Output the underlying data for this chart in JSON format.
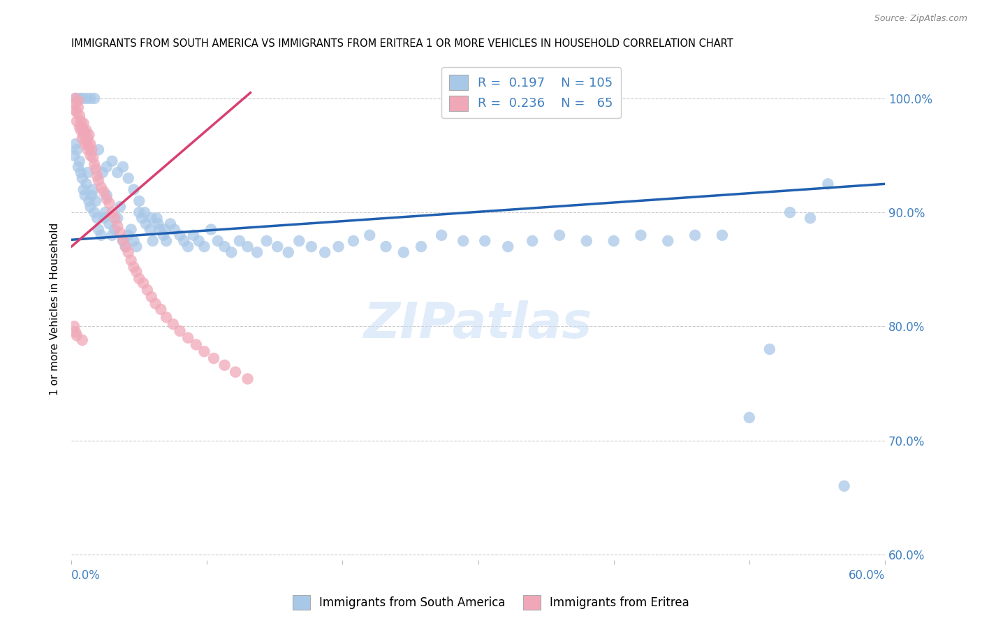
{
  "title": "IMMIGRANTS FROM SOUTH AMERICA VS IMMIGRANTS FROM ERITREA 1 OR MORE VEHICLES IN HOUSEHOLD CORRELATION CHART",
  "source": "Source: ZipAtlas.com",
  "ylabel": "1 or more Vehicles in Household",
  "yticks": [
    "100.0%",
    "90.0%",
    "80.0%",
    "70.0%",
    "60.0%"
  ],
  "ytick_values": [
    1.0,
    0.9,
    0.8,
    0.7,
    0.6
  ],
  "xlim": [
    0.0,
    0.6
  ],
  "ylim": [
    0.595,
    1.035
  ],
  "legend_r_blue": "0.197",
  "legend_n_blue": "105",
  "legend_r_pink": "0.236",
  "legend_n_pink": "65",
  "blue_color": "#a8c8e8",
  "pink_color": "#f0a8b8",
  "line_blue": "#2060b0",
  "line_pink": "#d84070",
  "text_color": "#4080c0",
  "watermark": "ZIPatlas",
  "blue_line_x0": 0.0,
  "blue_line_x1": 0.6,
  "blue_line_y0": 0.876,
  "blue_line_y1": 0.925,
  "pink_line_x0": 0.0,
  "pink_line_x1": 0.132,
  "pink_line_y0": 0.87,
  "pink_line_y1": 1.005,
  "blue_x": [
    0.002,
    0.003,
    0.004,
    0.005,
    0.006,
    0.007,
    0.008,
    0.009,
    0.01,
    0.011,
    0.012,
    0.013,
    0.014,
    0.015,
    0.016,
    0.017,
    0.018,
    0.019,
    0.02,
    0.022,
    0.024,
    0.025,
    0.026,
    0.028,
    0.03,
    0.032,
    0.034,
    0.036,
    0.038,
    0.04,
    0.042,
    0.044,
    0.046,
    0.048,
    0.05,
    0.052,
    0.055,
    0.058,
    0.06,
    0.063,
    0.065,
    0.068,
    0.07,
    0.073,
    0.076,
    0.08,
    0.083,
    0.086,
    0.09,
    0.094,
    0.098,
    0.103,
    0.108,
    0.113,
    0.118,
    0.124,
    0.13,
    0.137,
    0.144,
    0.152,
    0.16,
    0.168,
    0.177,
    0.187,
    0.197,
    0.208,
    0.22,
    0.232,
    0.245,
    0.258,
    0.273,
    0.289,
    0.305,
    0.322,
    0.34,
    0.36,
    0.38,
    0.4,
    0.42,
    0.44,
    0.46,
    0.48,
    0.5,
    0.515,
    0.53,
    0.545,
    0.558,
    0.003,
    0.006,
    0.008,
    0.011,
    0.014,
    0.017,
    0.02,
    0.023,
    0.026,
    0.03,
    0.034,
    0.038,
    0.042,
    0.046,
    0.05,
    0.054,
    0.059,
    0.064,
    0.069,
    0.57
  ],
  "blue_y": [
    0.95,
    0.96,
    0.955,
    0.94,
    0.945,
    0.935,
    0.93,
    0.92,
    0.915,
    0.925,
    0.935,
    0.91,
    0.905,
    0.915,
    0.92,
    0.9,
    0.91,
    0.895,
    0.885,
    0.88,
    0.895,
    0.9,
    0.915,
    0.89,
    0.88,
    0.885,
    0.895,
    0.905,
    0.875,
    0.87,
    0.88,
    0.885,
    0.875,
    0.87,
    0.9,
    0.895,
    0.89,
    0.885,
    0.875,
    0.895,
    0.885,
    0.88,
    0.875,
    0.89,
    0.885,
    0.88,
    0.875,
    0.87,
    0.88,
    0.875,
    0.87,
    0.885,
    0.875,
    0.87,
    0.865,
    0.875,
    0.87,
    0.865,
    0.875,
    0.87,
    0.865,
    0.875,
    0.87,
    0.865,
    0.87,
    0.875,
    0.88,
    0.87,
    0.865,
    0.87,
    0.88,
    0.875,
    0.875,
    0.87,
    0.875,
    0.88,
    0.875,
    0.875,
    0.88,
    0.875,
    0.88,
    0.88,
    0.72,
    0.78,
    0.9,
    0.895,
    0.925,
    1.0,
    1.0,
    1.0,
    1.0,
    1.0,
    1.0,
    0.955,
    0.935,
    0.94,
    0.945,
    0.935,
    0.94,
    0.93,
    0.92,
    0.91,
    0.9,
    0.895,
    0.89,
    0.885,
    0.66
  ],
  "pink_x": [
    0.002,
    0.003,
    0.003,
    0.004,
    0.004,
    0.005,
    0.005,
    0.006,
    0.006,
    0.007,
    0.007,
    0.008,
    0.008,
    0.009,
    0.009,
    0.01,
    0.01,
    0.011,
    0.011,
    0.012,
    0.012,
    0.013,
    0.013,
    0.014,
    0.014,
    0.015,
    0.016,
    0.017,
    0.018,
    0.019,
    0.02,
    0.022,
    0.024,
    0.026,
    0.028,
    0.03,
    0.032,
    0.034,
    0.036,
    0.038,
    0.04,
    0.042,
    0.044,
    0.046,
    0.048,
    0.05,
    0.053,
    0.056,
    0.059,
    0.062,
    0.066,
    0.07,
    0.075,
    0.08,
    0.086,
    0.092,
    0.098,
    0.105,
    0.113,
    0.121,
    0.13,
    0.002,
    0.003,
    0.004,
    0.008
  ],
  "pink_y": [
    0.99,
    0.995,
    1.0,
    0.988,
    0.98,
    0.992,
    0.998,
    0.975,
    0.985,
    0.972,
    0.98,
    0.965,
    0.975,
    0.968,
    0.978,
    0.96,
    0.97,
    0.962,
    0.972,
    0.955,
    0.965,
    0.958,
    0.968,
    0.95,
    0.96,
    0.955,
    0.948,
    0.942,
    0.938,
    0.932,
    0.928,
    0.922,
    0.918,
    0.912,
    0.908,
    0.9,
    0.895,
    0.888,
    0.882,
    0.876,
    0.87,
    0.865,
    0.858,
    0.852,
    0.848,
    0.842,
    0.838,
    0.832,
    0.826,
    0.82,
    0.815,
    0.808,
    0.802,
    0.796,
    0.79,
    0.784,
    0.778,
    0.772,
    0.766,
    0.76,
    0.754,
    0.8,
    0.795,
    0.792,
    0.788
  ]
}
